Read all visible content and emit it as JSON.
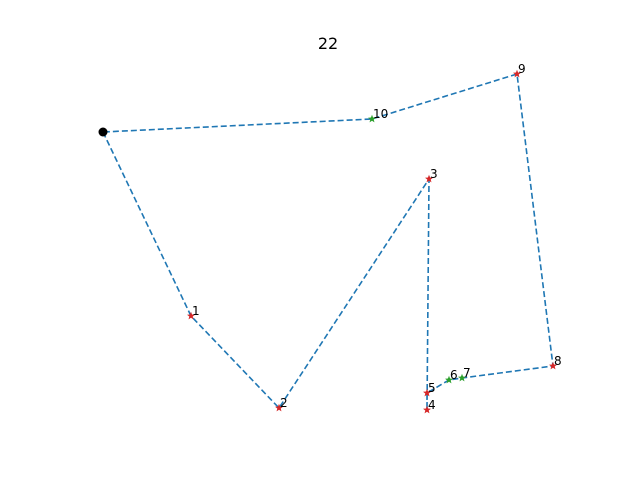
{
  "title": "22",
  "colors": {
    "route": "#1f77b4",
    "depot": "#000000",
    "red_node": "#d62728",
    "green_node": "#2ca02c"
  },
  "diagram": {
    "type": "route",
    "line_style": "dashed",
    "depot": {
      "marker": "circle"
    },
    "nodes": [
      {
        "label": "1",
        "marker": "star",
        "color": "red"
      },
      {
        "label": "2",
        "marker": "star",
        "color": "red"
      },
      {
        "label": "3",
        "marker": "star",
        "color": "red"
      },
      {
        "label": "4",
        "marker": "star",
        "color": "red"
      },
      {
        "label": "5",
        "marker": "star",
        "color": "red"
      },
      {
        "label": "6",
        "marker": "star",
        "color": "green"
      },
      {
        "label": "7",
        "marker": "star",
        "color": "green"
      },
      {
        "label": "8",
        "marker": "star",
        "color": "red"
      },
      {
        "label": "9",
        "marker": "star",
        "color": "red"
      },
      {
        "label": "10",
        "marker": "star",
        "color": "green"
      }
    ],
    "route_order": [
      "depot",
      "1",
      "2",
      "3",
      "4",
      "5",
      "6",
      "7",
      "8",
      "9",
      "10",
      "depot"
    ]
  }
}
